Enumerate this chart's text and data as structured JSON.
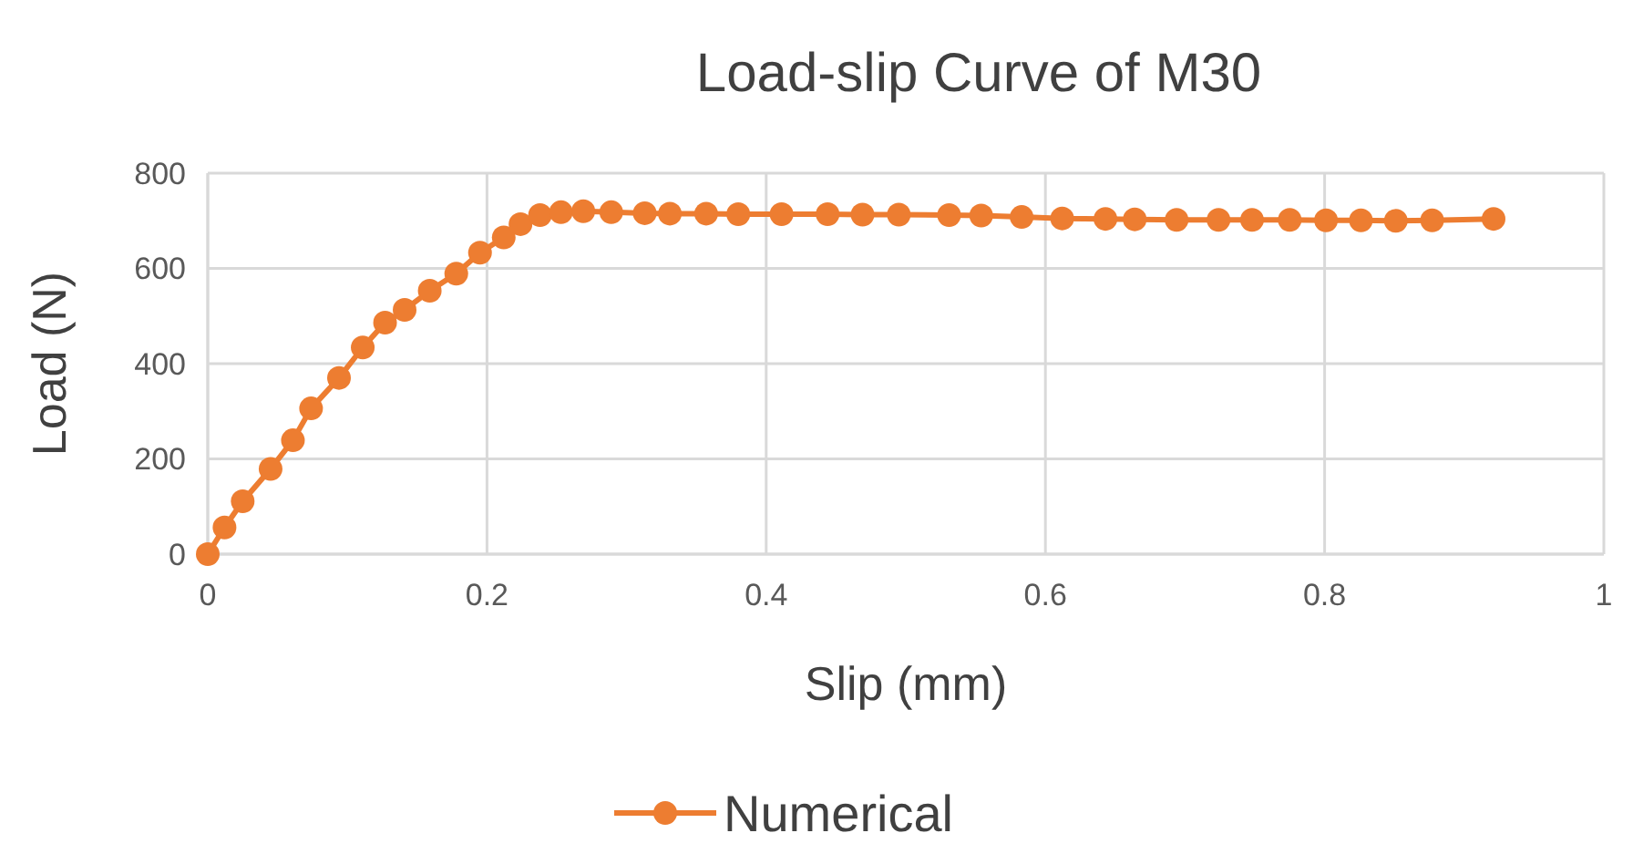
{
  "chart_data": {
    "type": "line",
    "title": "Load-slip Curve of M30",
    "xlabel": "Slip (mm)",
    "ylabel": "Load (N)",
    "xlim": [
      0,
      1
    ],
    "xticks": [
      0,
      0.2,
      0.4,
      0.6,
      0.8,
      1
    ],
    "ylim": [
      0,
      800
    ],
    "yticks": [
      0,
      200,
      400,
      600,
      800
    ],
    "grid": true,
    "legend": "bottom",
    "marker": "circle",
    "line_style": "solid",
    "series": [
      {
        "name": "Numerical",
        "color": "#ed7d31",
        "x": [
          0,
          0.012,
          0.025,
          0.045,
          0.061,
          0.074,
          0.094,
          0.111,
          0.127,
          0.141,
          0.159,
          0.178,
          0.195,
          0.212,
          0.224,
          0.238,
          0.253,
          0.269,
          0.289,
          0.313,
          0.331,
          0.357,
          0.38,
          0.411,
          0.444,
          0.469,
          0.495,
          0.531,
          0.554,
          0.583,
          0.612,
          0.643,
          0.664,
          0.694,
          0.724,
          0.748,
          0.775,
          0.801,
          0.826,
          0.851,
          0.877,
          0.921
        ],
        "values": [
          0,
          56,
          111,
          179,
          239,
          306,
          370,
          434,
          486,
          513,
          553,
          589,
          633,
          665,
          693,
          712,
          718,
          720,
          718,
          716,
          715,
          715,
          714,
          714,
          714,
          713,
          713,
          712,
          711,
          708,
          705,
          704,
          703,
          702,
          702,
          702,
          702,
          701,
          701,
          700,
          701,
          704
        ]
      }
    ]
  }
}
